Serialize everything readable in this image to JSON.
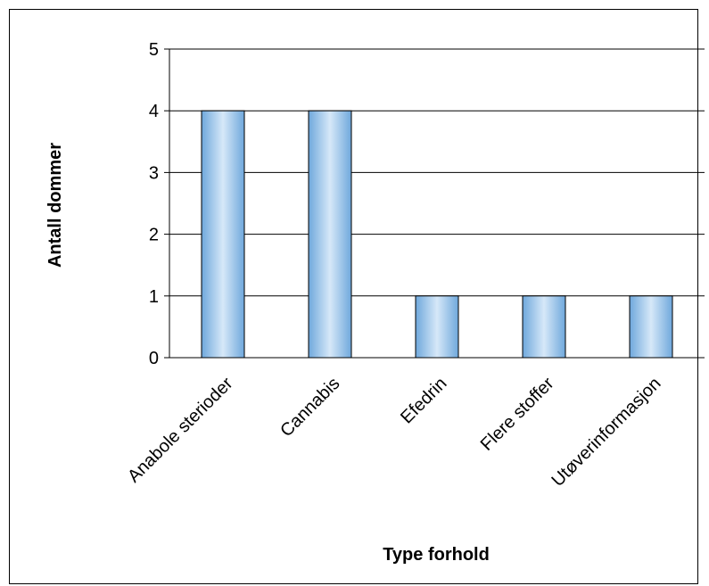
{
  "chart_data": {
    "type": "bar",
    "categories": [
      "Anabole sterioder",
      "Cannabis",
      "Efedrin",
      "Flere stoffer",
      "Utøverinformasjon"
    ],
    "values": [
      4,
      4,
      1,
      1,
      1
    ],
    "title": "",
    "xlabel": "Type forhold",
    "ylabel": "Antall dommer",
    "ylim": [
      0,
      5
    ],
    "yticks": [
      0,
      1,
      2,
      3,
      4,
      5
    ],
    "grid": true,
    "legend": "none",
    "bar_color": "#6FA8DC",
    "bar_gradient": [
      "#6FA8DC",
      "#D6E8F8",
      "#6FA8DC"
    ]
  }
}
